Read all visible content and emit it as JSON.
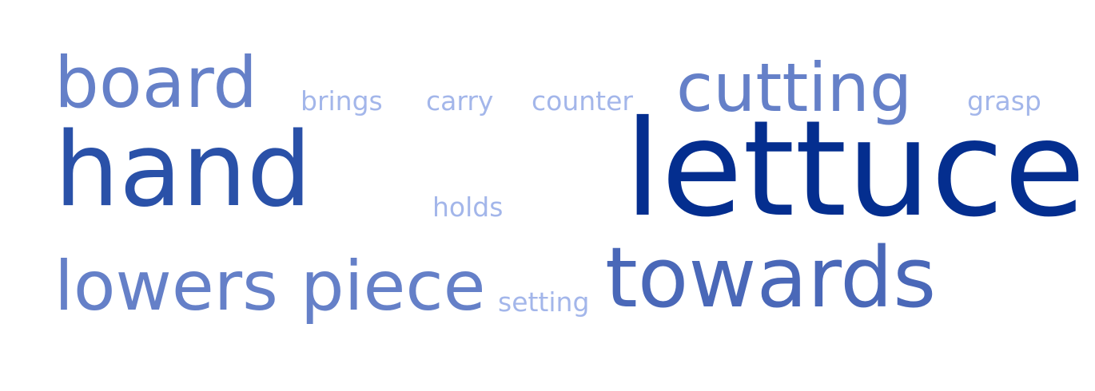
{
  "colors": {
    "background": "#ffffff",
    "darkest": "#042e8f",
    "dark": "#2a51a8",
    "medium": "#5f7dc6",
    "mediumDark": "#4f6ebd",
    "light": "#a3b6ea"
  },
  "words": [
    {
      "text": "board",
      "name": "word-board",
      "color": "#6580c8"
    },
    {
      "text": "brings",
      "name": "word-brings",
      "color": "#a3b6ea"
    },
    {
      "text": "carry",
      "name": "word-carry",
      "color": "#a3b6ea"
    },
    {
      "text": "counter",
      "name": "word-counter",
      "color": "#a3b6ea"
    },
    {
      "text": "cutting",
      "name": "word-cutting",
      "color": "#6580c8"
    },
    {
      "text": "grasp",
      "name": "word-grasp",
      "color": "#a3b6ea"
    },
    {
      "text": "hand",
      "name": "word-hand",
      "color": "#2a51a8"
    },
    {
      "text": "holds",
      "name": "word-holds",
      "color": "#a3b6ea"
    },
    {
      "text": "lettuce",
      "name": "word-lettuce",
      "color": "#042e8f"
    },
    {
      "text": "lowers",
      "name": "word-lowers",
      "color": "#6580c8"
    },
    {
      "text": "piece",
      "name": "word-piece",
      "color": "#6580c8"
    },
    {
      "text": "setting",
      "name": "word-setting",
      "color": "#a3b6ea"
    },
    {
      "text": "towards",
      "name": "word-towards",
      "color": "#4a68b8"
    }
  ]
}
